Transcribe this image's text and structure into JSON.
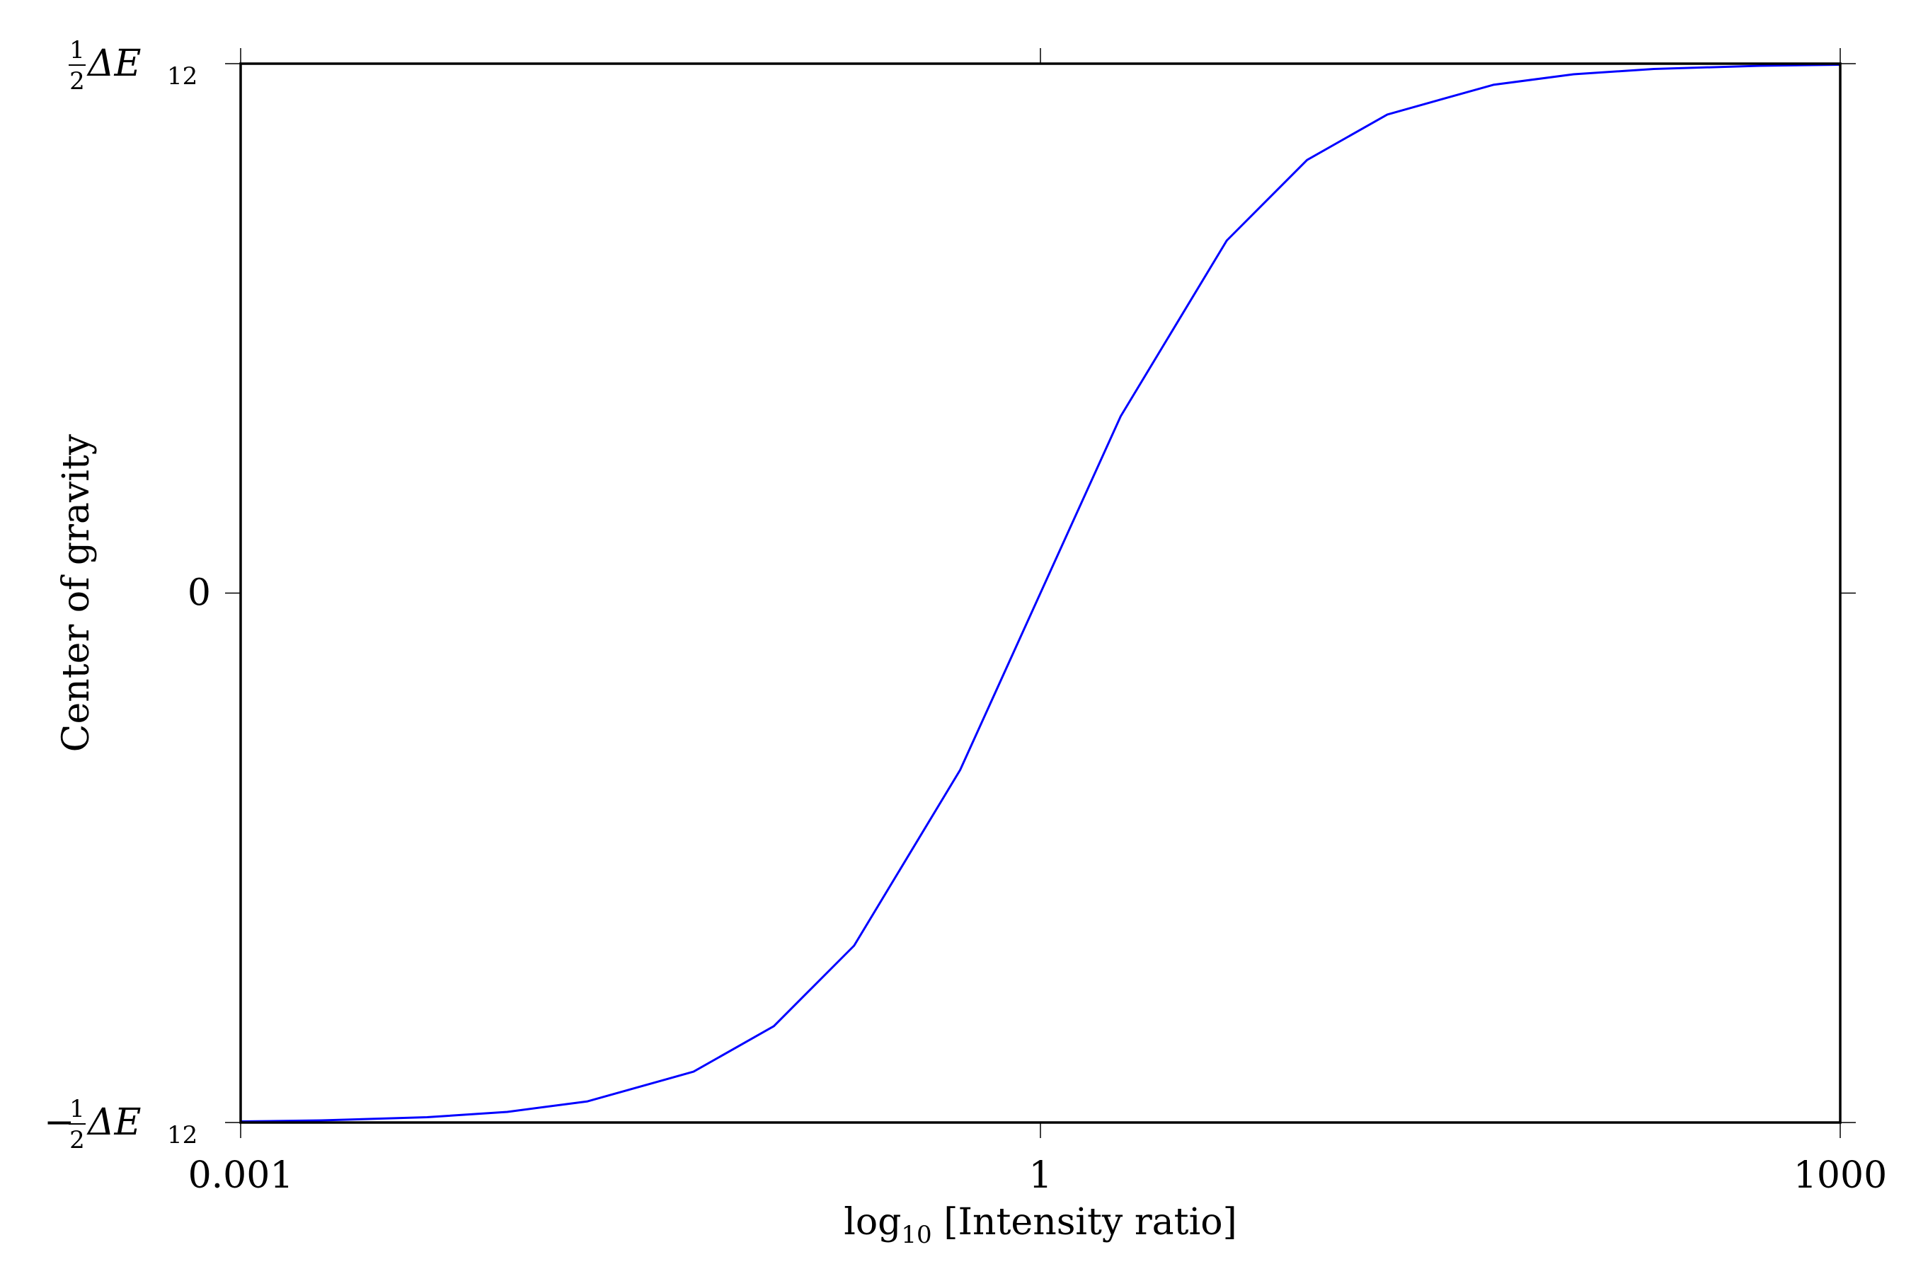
{
  "chart_data": {
    "type": "line",
    "title": "",
    "xlabel": {
      "main": "log",
      "subscript": "10",
      "rest": " [Intensity ratio]"
    },
    "ylabel": "Center of gravity",
    "x_scale": "log",
    "xlim": [
      0.001,
      1000
    ],
    "ylim": [
      -0.5,
      0.5
    ],
    "grid": false,
    "x_ticks": [
      {
        "value": 0.001,
        "label": "0.001"
      },
      {
        "value": 1,
        "label": "1"
      },
      {
        "value": 1000,
        "label": "1000"
      }
    ],
    "y_ticks": [
      {
        "value": 0.5,
        "label": "½ΔE₁₂",
        "prefix": "",
        "frac_num": "1",
        "frac_den": "2",
        "main": "ΔE",
        "sub": "12"
      },
      {
        "value": 0,
        "label": "0",
        "prefix": "",
        "frac_num": "",
        "frac_den": "",
        "main": "0",
        "sub": ""
      },
      {
        "value": -0.5,
        "label": "−½ΔE₁₂",
        "prefix": "−",
        "frac_num": "1",
        "frac_den": "2",
        "main": "ΔE",
        "sub": "12"
      }
    ],
    "series": [
      {
        "color": "#0000ff",
        "x": [
          0.001,
          0.002,
          0.005,
          0.01,
          0.02,
          0.05,
          0.1,
          0.2,
          0.5,
          1,
          2,
          5,
          10,
          20,
          50,
          100,
          200,
          500,
          1000
        ],
        "y": [
          -0.499,
          -0.498,
          -0.495,
          -0.49,
          -0.48,
          -0.452,
          -0.409,
          -0.333,
          -0.167,
          0.0,
          0.167,
          0.333,
          0.409,
          0.452,
          0.48,
          0.49,
          0.495,
          0.498,
          0.499
        ]
      }
    ]
  }
}
